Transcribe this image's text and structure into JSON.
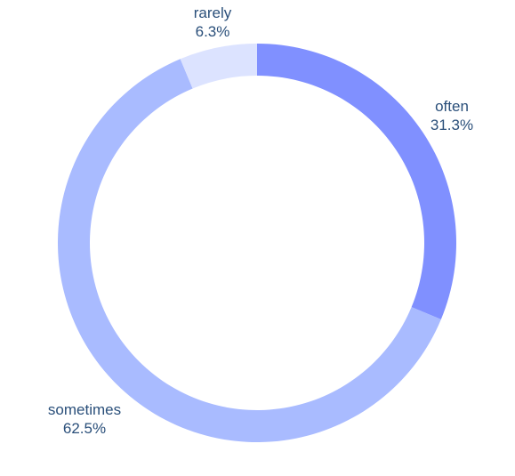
{
  "chart_data": {
    "type": "pie",
    "hole": true,
    "categories": [
      "often",
      "sometimes",
      "rarely"
    ],
    "values": [
      31.3,
      62.5,
      6.3
    ],
    "percent_labels": [
      "31.3%",
      "62.5%",
      "6.3%"
    ],
    "colors": [
      "#8090ff",
      "#a9bbff",
      "#dce3ff"
    ],
    "label_color": "#2a4f7a",
    "direction": "clockwise",
    "start": "top"
  }
}
